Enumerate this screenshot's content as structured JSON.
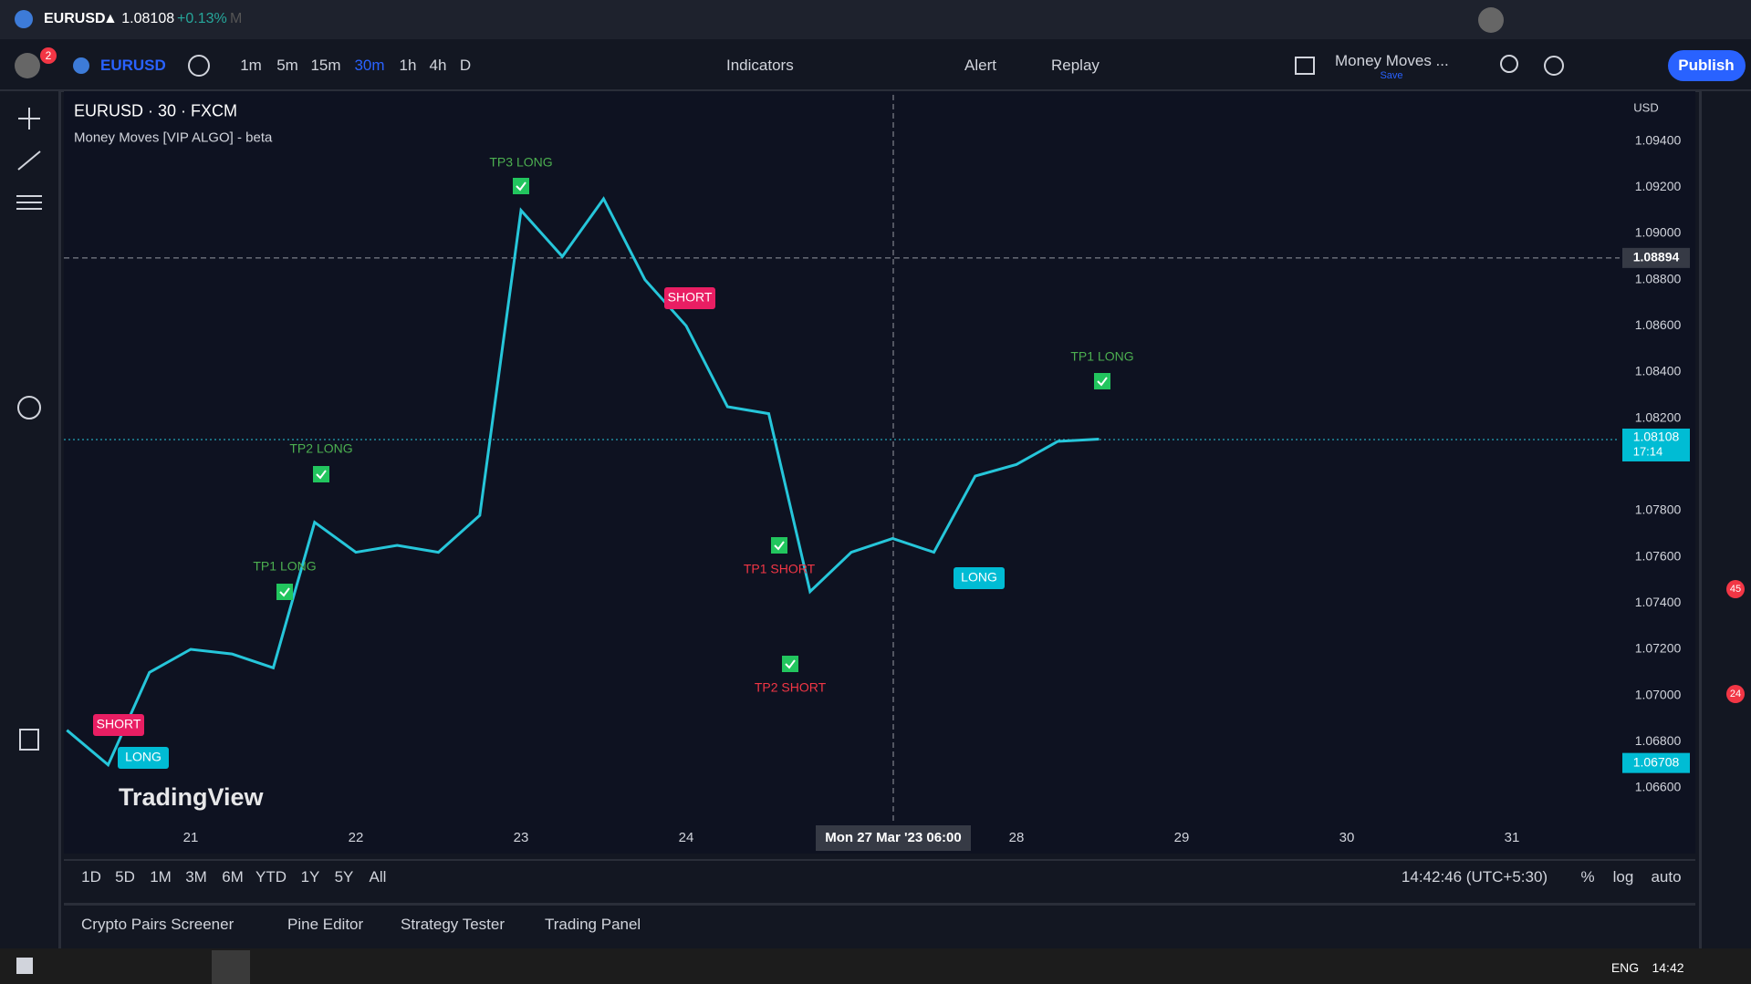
{
  "tab": {
    "symbol": "EURUSD",
    "price": "▲ 1.08108",
    "change": "+0.13%",
    "extra": "M"
  },
  "toolbar": {
    "notifications": "2",
    "symbol": "EURUSD",
    "intervals": [
      "1m",
      "5m",
      "15m",
      "30m",
      "1h",
      "4h",
      "D"
    ],
    "active_interval": 3,
    "indicators": "Indicators",
    "alert": "Alert",
    "replay": "Replay",
    "layout": "Money Moves ...",
    "layout_status": "Save",
    "publish": "Publish"
  },
  "chart_data": {
    "type": "line",
    "title": "EURUSD · 30 · FXCM",
    "subtitle": "Money Moves [VIP ALGO] - beta",
    "currency": "USD",
    "color": "#26c6da",
    "values": [
      1.0685,
      1.067,
      1.071,
      1.072,
      1.0718,
      1.0712,
      1.0775,
      1.0762,
      1.0765,
      1.0762,
      1.0778,
      1.091,
      1.089,
      1.0915,
      1.088,
      1.086,
      1.0825,
      1.0822,
      1.0745,
      1.0762,
      1.0768,
      1.0762,
      1.0795,
      1.08,
      1.081,
      1.0811
    ],
    "x_labels": [
      "21",
      "22",
      "23",
      "24",
      null,
      "28",
      "29",
      "30",
      "31"
    ],
    "ylim": [
      1.0645,
      1.096
    ],
    "yticks": [
      {
        "value": 1.094,
        "label": "1.09400"
      },
      {
        "value": 1.092,
        "label": "1.09200"
      },
      {
        "value": 1.09,
        "label": "1.09000"
      },
      {
        "value": 1.088,
        "label": "1.08800"
      },
      {
        "value": 1.086,
        "label": "1.08600"
      },
      {
        "value": 1.084,
        "label": "1.08400"
      },
      {
        "value": 1.082,
        "label": "1.08200"
      },
      {
        "value": 1.078,
        "label": "1.07800"
      },
      {
        "value": 1.076,
        "label": "1.07600"
      },
      {
        "value": 1.074,
        "label": "1.07400"
      },
      {
        "value": 1.072,
        "label": "1.07200"
      },
      {
        "value": 1.07,
        "label": "1.07000"
      },
      {
        "value": 1.068,
        "label": "1.06800"
      },
      {
        "value": 1.066,
        "label": "1.06600"
      }
    ],
    "crosshair": {
      "price": {
        "value": 1.08894,
        "label": "1.08894"
      },
      "time": "Mon 27 Mar '23  06:00"
    },
    "last_price": {
      "value": 1.08108,
      "label": "1.08108",
      "countdown": "17:14"
    },
    "marker_price": {
      "value": 1.06708,
      "label": "1.06708"
    },
    "signals": [
      "TP3 LONG",
      "SHORT",
      "TP1 LONG",
      "TP2 LONG",
      "TP1 LONG",
      "TP1 SHORT",
      "TP2 SHORT",
      "LONG",
      "SHORT",
      "LONG"
    ],
    "watermark": "TradingView"
  },
  "range_bar": {
    "ranges": [
      "1D",
      "5D",
      "1M",
      "3M",
      "6M",
      "YTD",
      "1Y",
      "5Y",
      "All"
    ],
    "clock": "14:42:46 (UTC+5:30)",
    "percent": "%",
    "log": "log",
    "auto": "auto"
  },
  "panel_tabs": [
    "Crypto Pairs Screener",
    "Pine Editor",
    "Strategy Tester",
    "Trading Panel"
  ],
  "sidebar_badges": [
    "45",
    "24"
  ],
  "taskbar": {
    "lang": "ENG",
    "time": "14:42"
  }
}
